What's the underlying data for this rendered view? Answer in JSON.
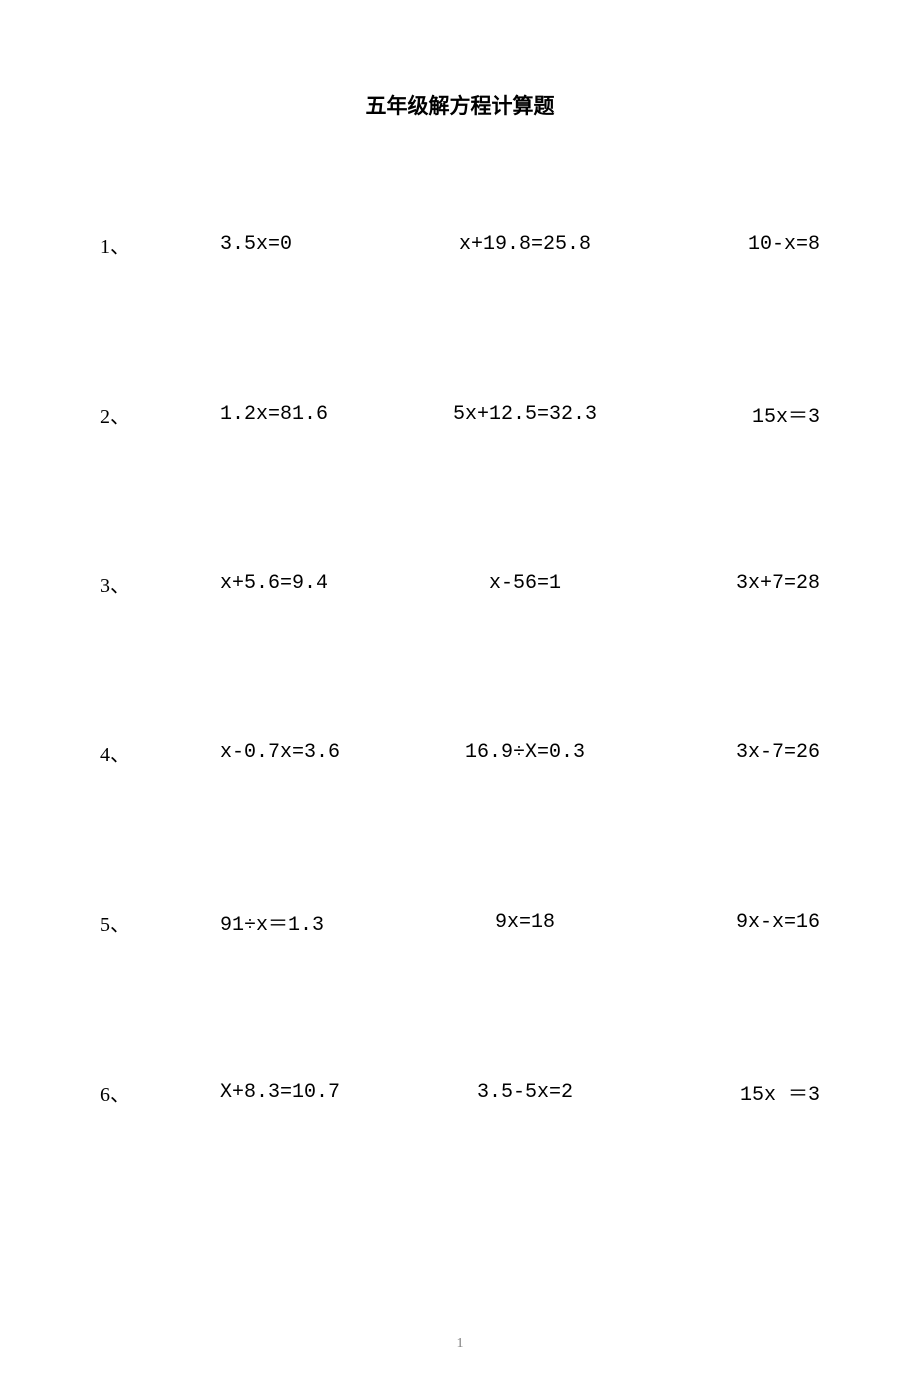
{
  "title": "五年级解方程计算题",
  "title_fontsize": 21,
  "body_fontsize": 20,
  "text_color": "#000000",
  "background_color": "#ffffff",
  "page_number": "1",
  "page_number_fontsize": 14,
  "rows": [
    {
      "num": "1、",
      "equations": [
        "3.5x=0",
        "x+19.8=25.8",
        "10-x=8"
      ]
    },
    {
      "num": "2、",
      "equations": [
        "1.2x=81.6",
        "5x+12.5=32.3",
        "15x＝3"
      ]
    },
    {
      "num": "3、",
      "equations": [
        "x+5.6=9.4",
        "x-56=1",
        "3x+7=28"
      ]
    },
    {
      "num": "4、",
      "equations": [
        "x-0.7x=3.6",
        "16.9÷X=0.3",
        "3x-7=26"
      ]
    },
    {
      "num": "5、",
      "equations": [
        "91÷x＝1.3",
        "9x=18",
        "9x-x=16"
      ]
    },
    {
      "num": "6、",
      "equations": [
        "X+8.3=10.7",
        "3.5-5x=2",
        "15x ＝3"
      ]
    }
  ]
}
